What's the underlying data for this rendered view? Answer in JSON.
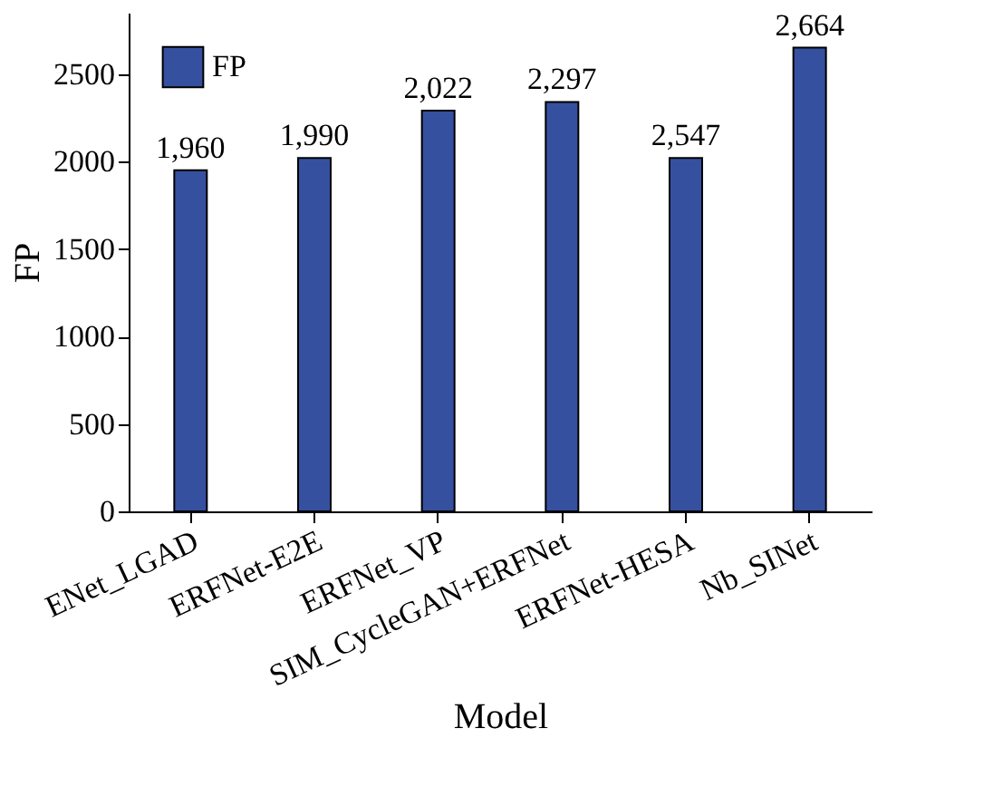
{
  "chart_data": {
    "type": "bar",
    "xlabel": "Model",
    "ylabel": "FP",
    "categories": [
      "ENet_LGAD",
      "ERFNet-E2E",
      "ERFNet_VP",
      "SIM_CycleGAN+ERFNet",
      "ERFNet-HESA",
      "Nb_SINet"
    ],
    "series": [
      {
        "name": "FP",
        "color": "#3650a0",
        "values": [
          1950,
          2020,
          2290,
          2340,
          2020,
          2650
        ]
      }
    ],
    "value_labels": [
      "1,960",
      "1,990",
      "2,022",
      "2,297",
      "2,547",
      "2,664"
    ],
    "ylim": [
      0,
      2850
    ],
    "yticks": [
      0,
      500,
      1000,
      1500,
      2000,
      2500
    ],
    "grid": false,
    "legend": "top left"
  }
}
